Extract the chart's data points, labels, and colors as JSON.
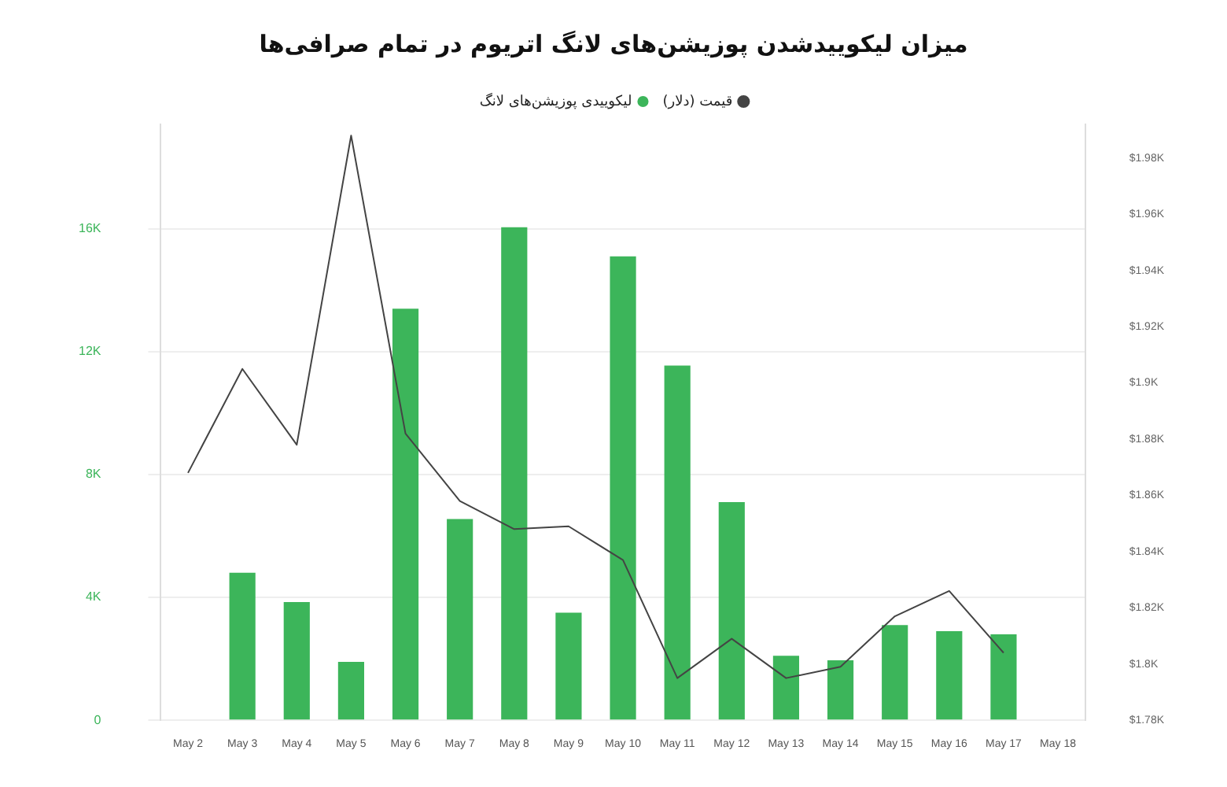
{
  "chart_data": {
    "type": "bar",
    "title": "میزان لیکوییدشدن پوزیشن‌های لانگ اتریوم در تمام صرافی‌ها",
    "categories": [
      "May 2",
      "May 3",
      "May 4",
      "May 5",
      "May 6",
      "May 7",
      "May 8",
      "May 9",
      "May 10",
      "May 11",
      "May 12",
      "May 13",
      "May 14",
      "May 15",
      "May 16",
      "May 17",
      "May 18"
    ],
    "series": [
      {
        "name": "لیکوییدی پوزیشن‌های لانگ",
        "color": "#3cb55a",
        "values": [
          null,
          4800,
          3850,
          1900,
          13400,
          6550,
          16050,
          3500,
          15100,
          11550,
          7100,
          2100,
          1950,
          3100,
          2900,
          2800,
          null
        ]
      },
      {
        "name": "قیمت (دلار)",
        "type": "line",
        "axis": "y2",
        "color": "#444444",
        "values": [
          1868,
          1905,
          1878,
          1988,
          1882,
          1858,
          1848,
          1849,
          1837,
          1795,
          1809,
          1795,
          1799,
          1817,
          1826,
          1804,
          null
        ]
      }
    ],
    "ylim": [
      0,
      19400
    ],
    "yticks": [
      {
        "value": 0,
        "label": "0"
      },
      {
        "value": 4000,
        "label": "4K"
      },
      {
        "value": 8000,
        "label": "8K"
      },
      {
        "value": 12000,
        "label": "12K"
      },
      {
        "value": 16000,
        "label": "16K"
      }
    ],
    "y2lim": [
      1780,
      1992
    ],
    "y2ticks": [
      {
        "value": 1780,
        "label": "$1.78K"
      },
      {
        "value": 1800,
        "label": "$1.8K"
      },
      {
        "value": 1820,
        "label": "$1.82K"
      },
      {
        "value": 1840,
        "label": "$1.84K"
      },
      {
        "value": 1860,
        "label": "$1.86K"
      },
      {
        "value": 1880,
        "label": "$1.88K"
      },
      {
        "value": 1900,
        "label": "$1.9K"
      },
      {
        "value": 1920,
        "label": "$1.92K"
      },
      {
        "value": 1940,
        "label": "$1.94K"
      },
      {
        "value": 1960,
        "label": "$1.96K"
      },
      {
        "value": 1980,
        "label": "$1.98K"
      }
    ],
    "grid": "y",
    "legend": "top",
    "marker": "none",
    "line_style": "solid"
  }
}
